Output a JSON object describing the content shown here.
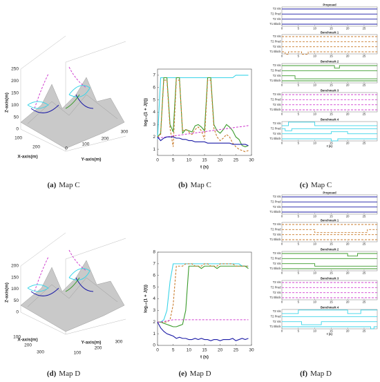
{
  "panels": [
    {
      "caption_label": "(a)",
      "caption_text": "Map C",
      "type": "surface3d",
      "zlabel": "Z-axis(m)",
      "xlabel": "X-axis(m)",
      "ylabel": "Y-axis(m)",
      "zticks": [
        0,
        50,
        100,
        150,
        200,
        250
      ],
      "xticks": [
        100,
        200
      ],
      "yticks": [
        0,
        100,
        200,
        300
      ]
    },
    {
      "caption_label": "(b)",
      "caption_text": "Map C",
      "type": "line",
      "xlabel": "t (s)",
      "ylabel": "log₁₀(1 + J(t))",
      "xlim": [
        0,
        30
      ],
      "xticks": [
        0,
        5,
        10,
        15,
        20,
        25,
        30
      ],
      "ylim": [
        0.5,
        7.5
      ],
      "yticks": [
        1,
        2,
        3,
        4,
        5,
        6,
        7
      ],
      "x": [
        0,
        1,
        2,
        3,
        4,
        5,
        6,
        7,
        8,
        9,
        10,
        11,
        12,
        13,
        14,
        15,
        16,
        17,
        18,
        19,
        20,
        21,
        22,
        23,
        24,
        25,
        26,
        27,
        28,
        29
      ],
      "series": [
        {
          "color": "#38d4e8",
          "style": "solid",
          "values": [
            1.8,
            6.8,
            6.8,
            6.8,
            6.8,
            6.8,
            6.8,
            6.8,
            6.8,
            6.8,
            6.8,
            6.8,
            6.8,
            6.8,
            6.8,
            6.8,
            6.8,
            6.8,
            6.8,
            6.8,
            6.8,
            6.8,
            6.8,
            6.8,
            6.8,
            7.0,
            7.0,
            7.0,
            7.0,
            7.0
          ]
        },
        {
          "color": "#3a9a2a",
          "style": "solid",
          "values": [
            2.0,
            2.3,
            6.8,
            6.8,
            3.0,
            2.4,
            6.8,
            6.8,
            2.3,
            2.6,
            2.5,
            2.4,
            2.9,
            3.0,
            2.8,
            2.5,
            6.8,
            6.8,
            3.0,
            2.5,
            2.3,
            2.6,
            3.0,
            2.8,
            2.5,
            2.0,
            1.8,
            1.3,
            1.2,
            1.3
          ]
        },
        {
          "color": "#c87a2a",
          "style": "dashed",
          "values": [
            2.0,
            2.2,
            6.6,
            6.6,
            2.7,
            1.2,
            6.6,
            6.6,
            2.5,
            2.6,
            2.4,
            2.2,
            2.6,
            2.8,
            2.5,
            1.8,
            6.6,
            6.6,
            2.7,
            2.0,
            1.7,
            1.9,
            2.2,
            2.0,
            1.5,
            1.2,
            1.0,
            0.9,
            0.8,
            0.9
          ]
        },
        {
          "color": "#d040d0",
          "style": "dashed",
          "values": [
            1.9,
            1.94,
            1.97,
            2.0,
            2.04,
            2.08,
            2.11,
            2.14,
            2.18,
            2.22,
            2.25,
            2.28,
            2.32,
            2.36,
            2.39,
            2.42,
            2.46,
            2.5,
            2.53,
            2.56,
            2.6,
            2.64,
            2.67,
            2.7,
            2.74,
            2.78,
            2.81,
            2.84,
            2.88,
            2.92
          ]
        },
        {
          "color": "#1a1aa6",
          "style": "solid",
          "values": [
            2.0,
            1.7,
            1.9,
            2.0,
            2.0,
            2.0,
            1.9,
            1.9,
            1.8,
            1.8,
            1.7,
            1.7,
            1.6,
            1.6,
            1.6,
            1.6,
            1.5,
            1.5,
            1.5,
            1.5,
            1.5,
            1.5,
            1.5,
            1.5,
            1.4,
            1.4,
            1.4,
            1.4,
            1.4,
            1.3
          ]
        }
      ]
    },
    {
      "caption_label": "(c)",
      "caption_text": "Map C",
      "type": "step",
      "xlabel": "t (s)",
      "xlim": [
        0,
        29
      ],
      "xticks": [
        0,
        5,
        10,
        15,
        20,
        25
      ],
      "row_labels": [
        "T3 Vis",
        "T2 Pred",
        "T2 Vis",
        "T1 Block"
      ],
      "subplots": [
        {
          "title": "Proposed",
          "color": "#1a1aa6",
          "style": "solid",
          "series": [
            {
              "x": [
                0
              ],
              "values": [
                3
              ]
            },
            {
              "x": [
                0
              ],
              "values": [
                2
              ]
            },
            {
              "x": [
                0
              ],
              "values": [
                1
              ]
            },
            {
              "x": [
                0
              ],
              "values": [
                0
              ]
            }
          ]
        },
        {
          "title": "Benchmark 1",
          "color": "#c87a2a",
          "style": "dashed",
          "series": [
            {
              "x": [
                0
              ],
              "values": [
                3
              ]
            },
            {
              "x": [
                0
              ],
              "values": [
                2
              ]
            },
            {
              "x": [
                0
              ],
              "values": [
                1
              ]
            },
            {
              "x": [
                0,
                1,
                2,
                6,
                8
              ],
              "values": [
                0,
                -0.5,
                0,
                -0.5,
                0
              ]
            }
          ]
        },
        {
          "title": "Benchmark 2",
          "color": "#3a9a2a",
          "style": "solid",
          "series": [
            {
              "x": [
                0,
                16,
                17.5
              ],
              "values": [
                3,
                2.5,
                3
              ]
            },
            {
              "x": [
                0
              ],
              "values": [
                2
              ]
            },
            {
              "x": [
                0,
                4
              ],
              "values": [
                1,
                0.4
              ]
            },
            {
              "x": [
                0
              ],
              "values": [
                0
              ]
            }
          ]
        },
        {
          "title": "Benchmark 3",
          "color": "#d040d0",
          "style": "dashed",
          "series": [
            {
              "x": [
                0
              ],
              "values": [
                3
              ]
            },
            {
              "x": [
                0
              ],
              "values": [
                2
              ]
            },
            {
              "x": [
                0
              ],
              "values": [
                1
              ]
            },
            {
              "x": [
                0
              ],
              "values": [
                0
              ]
            }
          ]
        },
        {
          "title": "Benchmark 4",
          "color": "#38d4e8",
          "style": "solid",
          "series": [
            {
              "x": [
                0,
                2,
                10
              ],
              "values": [
                2.6,
                3.3,
                2.6
              ]
            },
            {
              "x": [
                0,
                1,
                3
              ],
              "values": [
                2,
                1.6,
                2
              ]
            },
            {
              "x": [
                0,
                15,
                20
              ],
              "values": [
                1,
                1.4,
                1
              ]
            },
            {
              "x": [
                0,
                15,
                17
              ],
              "values": [
                0,
                -0.4,
                0
              ]
            }
          ]
        }
      ]
    },
    {
      "caption_label": "(d)",
      "caption_text": "Map D",
      "type": "surface3d",
      "zlabel": "Z-axis(m)",
      "xlabel": "X-axis(m)",
      "ylabel": "Y-axis(m)",
      "zticks": [
        0,
        50,
        100,
        150,
        200
      ],
      "xticks": [
        100,
        200,
        300
      ],
      "yticks": [
        100,
        200,
        300
      ]
    },
    {
      "caption_label": "(e)",
      "caption_text": "Map D",
      "type": "line",
      "xlabel": "t (s)",
      "ylabel": "log₁₀(1 + J(t))",
      "xlim": [
        0,
        30
      ],
      "xticks": [
        0,
        5,
        10,
        15,
        20,
        25,
        30
      ],
      "ylim": [
        0,
        8
      ],
      "yticks": [
        0,
        1,
        2,
        3,
        4,
        5,
        6,
        7,
        8
      ],
      "x": [
        0,
        1,
        2,
        3,
        4,
        5,
        6,
        7,
        8,
        9,
        10,
        11,
        12,
        13,
        14,
        15,
        16,
        17,
        18,
        19,
        20,
        21,
        22,
        23,
        24,
        25,
        26,
        27,
        28,
        29
      ],
      "series": [
        {
          "color": "#38d4e8",
          "style": "solid",
          "values": [
            2.0,
            2.0,
            2.2,
            3.0,
            5.5,
            7.0,
            7.0,
            7.0,
            7.0,
            7.0,
            7.0,
            7.0,
            7.0,
            7.0,
            7.0,
            7.0,
            7.0,
            7.0,
            7.0,
            7.0,
            7.0,
            7.0,
            7.0,
            7.0,
            7.0,
            7.0,
            7.0,
            6.8,
            6.8,
            6.8
          ]
        },
        {
          "color": "#3a9a2a",
          "style": "solid",
          "values": [
            2.0,
            2.0,
            1.9,
            1.8,
            1.7,
            1.6,
            1.6,
            1.7,
            1.8,
            3.0,
            6.8,
            6.8,
            6.8,
            6.8,
            6.6,
            6.8,
            6.8,
            6.8,
            6.8,
            6.6,
            6.8,
            6.8,
            6.8,
            6.8,
            6.8,
            6.8,
            6.8,
            6.8,
            6.8,
            6.6
          ]
        },
        {
          "color": "#c87a2a",
          "style": "dashed",
          "values": [
            2.0,
            2.0,
            2.0,
            2.0,
            2.2,
            3.5,
            6.8,
            6.8,
            6.8,
            7.0,
            7.0,
            7.0,
            6.8,
            6.8,
            6.8,
            7.0,
            7.0,
            6.8,
            6.8,
            6.8,
            7.0,
            7.0,
            7.0,
            7.0,
            7.0,
            6.8,
            6.8,
            6.8,
            6.8,
            6.8
          ]
        },
        {
          "color": "#d040d0",
          "style": "dashed",
          "values": [
            2.0,
            2.0,
            2.05,
            2.1,
            2.15,
            2.2,
            2.2,
            2.2,
            2.2,
            2.2,
            2.2,
            2.2,
            2.2,
            2.2,
            2.2,
            2.2,
            2.2,
            2.2,
            2.2,
            2.2,
            2.2,
            2.2,
            2.2,
            2.2,
            2.2,
            2.2,
            2.2,
            2.2,
            2.2,
            2.2
          ]
        },
        {
          "color": "#1a1aa6",
          "style": "solid",
          "values": [
            2.0,
            1.5,
            1.2,
            1.0,
            0.9,
            0.8,
            0.6,
            0.7,
            0.6,
            0.6,
            0.5,
            0.5,
            0.6,
            0.5,
            0.6,
            0.5,
            0.5,
            0.4,
            0.5,
            0.5,
            0.4,
            0.5,
            0.5,
            0.5,
            0.6,
            0.4,
            0.5,
            0.6,
            0.5,
            0.6
          ]
        }
      ]
    },
    {
      "caption_label": "(f)",
      "caption_text": "Map D",
      "type": "step",
      "xlabel": "t (s)",
      "xlim": [
        0,
        29
      ],
      "xticks": [
        0,
        5,
        10,
        15,
        20,
        25
      ],
      "row_labels": [
        "T3 Vis",
        "T2 Pred",
        "T2 Vis",
        "T1 Block"
      ],
      "subplots": [
        {
          "title": "Proposed",
          "color": "#1a1aa6",
          "style": "solid",
          "series": [
            {
              "x": [
                0
              ],
              "values": [
                3
              ]
            },
            {
              "x": [
                0
              ],
              "values": [
                2
              ]
            },
            {
              "x": [
                0
              ],
              "values": [
                1
              ]
            },
            {
              "x": [
                0
              ],
              "values": [
                0
              ]
            }
          ]
        },
        {
          "title": "Benchmark 1",
          "color": "#c87a2a",
          "style": "dashed",
          "series": [
            {
              "x": [
                0
              ],
              "values": [
                3
              ]
            },
            {
              "x": [
                0,
                10,
                26
              ],
              "values": [
                2,
                1.4,
                2
              ]
            },
            {
              "x": [
                0
              ],
              "values": [
                1
              ]
            },
            {
              "x": [
                0
              ],
              "values": [
                0
              ]
            }
          ]
        },
        {
          "title": "Benchmark 2",
          "color": "#3a9a2a",
          "style": "solid",
          "series": [
            {
              "x": [
                0,
                20,
                23
              ],
              "values": [
                3,
                2.5,
                3
              ]
            },
            {
              "x": [
                0
              ],
              "values": [
                2
              ]
            },
            {
              "x": [
                0,
                10
              ],
              "values": [
                1,
                0.5
              ]
            },
            {
              "x": [
                0
              ],
              "values": [
                0
              ]
            }
          ]
        },
        {
          "title": "Benchmark 3",
          "color": "#d040d0",
          "style": "dashed",
          "series": [
            {
              "x": [
                0
              ],
              "values": [
                3
              ]
            },
            {
              "x": [
                0
              ],
              "values": [
                2
              ]
            },
            {
              "x": [
                0
              ],
              "values": [
                1
              ]
            },
            {
              "x": [
                0
              ],
              "values": [
                0
              ]
            }
          ]
        },
        {
          "title": "Benchmark 4",
          "color": "#38d4e8",
          "style": "solid",
          "series": [
            {
              "x": [
                0,
                5,
                20,
                24
              ],
              "values": [
                2.6,
                3.3,
                2.6,
                3.3
              ]
            },
            {
              "x": [
                0
              ],
              "values": [
                2
              ]
            },
            {
              "x": [
                0,
                6,
                12
              ],
              "values": [
                1,
                0.4,
                1
              ]
            },
            {
              "x": [
                0,
                27,
                28
              ],
              "values": [
                0,
                -0.4,
                0
              ]
            }
          ]
        }
      ]
    }
  ]
}
